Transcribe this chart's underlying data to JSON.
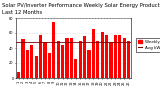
{
  "title": "Solar PV/Inverter Performance Weekly Solar Energy Production",
  "title2": "Last 12 Months",
  "bar_color": "#ff0000",
  "avg_color": "#800000",
  "background_color": "#ffffff",
  "plot_bg_color": "#ffffff",
  "grid_color": "#dddddd",
  "weeks": [
    "1",
    "2",
    "3",
    "4",
    "5",
    "6",
    "7",
    "8",
    "9",
    "10",
    "11",
    "12",
    "13",
    "14",
    "15",
    "16",
    "17",
    "18",
    "19",
    "20",
    "21",
    "22",
    "23",
    "24",
    "25",
    "26"
  ],
  "values": [
    8,
    52,
    38,
    44,
    30,
    58,
    48,
    34,
    75,
    50,
    44,
    54,
    54,
    26,
    50,
    56,
    38,
    65,
    50,
    62,
    58,
    48,
    58,
    58,
    54,
    50
  ],
  "avg_value": 48,
  "ylim": [
    0,
    80
  ],
  "yticks": [
    0,
    20,
    40,
    60,
    80
  ],
  "legend_label_bar": "Weekly kWh",
  "legend_label_avg": "Avg kWh",
  "title_fontsize": 3.8,
  "tick_fontsize": 2.5,
  "legend_fontsize": 3.0
}
